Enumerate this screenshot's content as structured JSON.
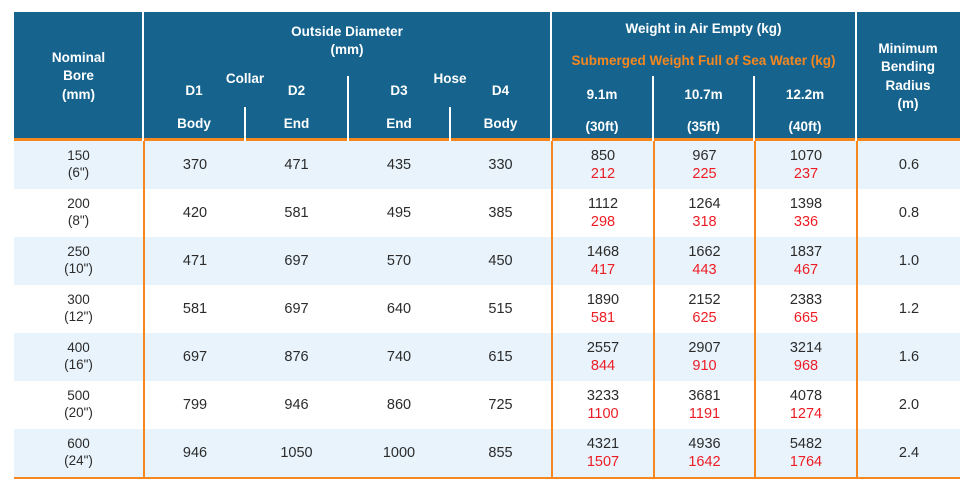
{
  "colors": {
    "header_bg": "#16648e",
    "header_text": "#ffffff",
    "accent_orange": "#f6871f",
    "submerged_red": "#ee1c25",
    "row_alt_bg": "#e8f3fb",
    "row_bg": "#ffffff",
    "body_text": "#2b2b2b"
  },
  "header": {
    "nominal_bore": "Nominal\nBore\n(mm)",
    "outside_diameter": "Outside Diameter\n(mm)",
    "collar_label": "Collar",
    "hose_label": "Hose",
    "d1": "D1",
    "d2": "D2",
    "d3": "D3",
    "d4": "D4",
    "d1_sub": "Body",
    "d2_sub": "End",
    "d3_sub": "End",
    "d4_sub": "Body",
    "weight_air": "Weight in Air Empty (kg)",
    "weight_submerged": "Submerged Weight Full of Sea Water (kg)",
    "len1_m": "9.1m",
    "len2_m": "10.7m",
    "len3_m": "12.2m",
    "len1_ft": "(30ft)",
    "len2_ft": "(35ft)",
    "len3_ft": "(40ft)",
    "min_bending_radius": "Minimum\nBending\nRadius\n(m)"
  },
  "rows": [
    {
      "bore": "150\n(6\")",
      "d1": "370",
      "d2": "471",
      "d3": "435",
      "d4": "330",
      "w1_air": "850",
      "w1_sub": "212",
      "w2_air": "967",
      "w2_sub": "225",
      "w3_air": "1070",
      "w3_sub": "237",
      "radius": "0.6"
    },
    {
      "bore": "200\n(8\")",
      "d1": "420",
      "d2": "581",
      "d3": "495",
      "d4": "385",
      "w1_air": "1112",
      "w1_sub": "298",
      "w2_air": "1264",
      "w2_sub": "318",
      "w3_air": "1398",
      "w3_sub": "336",
      "radius": "0.8"
    },
    {
      "bore": "250\n(10\")",
      "d1": "471",
      "d2": "697",
      "d3": "570",
      "d4": "450",
      "w1_air": "1468",
      "w1_sub": "417",
      "w2_air": "1662",
      "w2_sub": "443",
      "w3_air": "1837",
      "w3_sub": "467",
      "radius": "1.0"
    },
    {
      "bore": "300\n(12\")",
      "d1": "581",
      "d2": "697",
      "d3": "640",
      "d4": "515",
      "w1_air": "1890",
      "w1_sub": "581",
      "w2_air": "2152",
      "w2_sub": "625",
      "w3_air": "2383",
      "w3_sub": "665",
      "radius": "1.2"
    },
    {
      "bore": "400\n(16\")",
      "d1": "697",
      "d2": "876",
      "d3": "740",
      "d4": "615",
      "w1_air": "2557",
      "w1_sub": "844",
      "w2_air": "2907",
      "w2_sub": "910",
      "w3_air": "3214",
      "w3_sub": "968",
      "radius": "1.6"
    },
    {
      "bore": "500\n(20\")",
      "d1": "799",
      "d2": "946",
      "d3": "860",
      "d4": "725",
      "w1_air": "3233",
      "w1_sub": "1100",
      "w2_air": "3681",
      "w2_sub": "1191",
      "w3_air": "4078",
      "w3_sub": "1274",
      "radius": "2.0"
    },
    {
      "bore": "600\n(24\")",
      "d1": "946",
      "d2": "1050",
      "d3": "1000",
      "d4": "855",
      "w1_air": "4321",
      "w1_sub": "1507",
      "w2_air": "4936",
      "w2_sub": "1642",
      "w3_air": "5482",
      "w3_sub": "1764",
      "radius": "2.4"
    }
  ]
}
